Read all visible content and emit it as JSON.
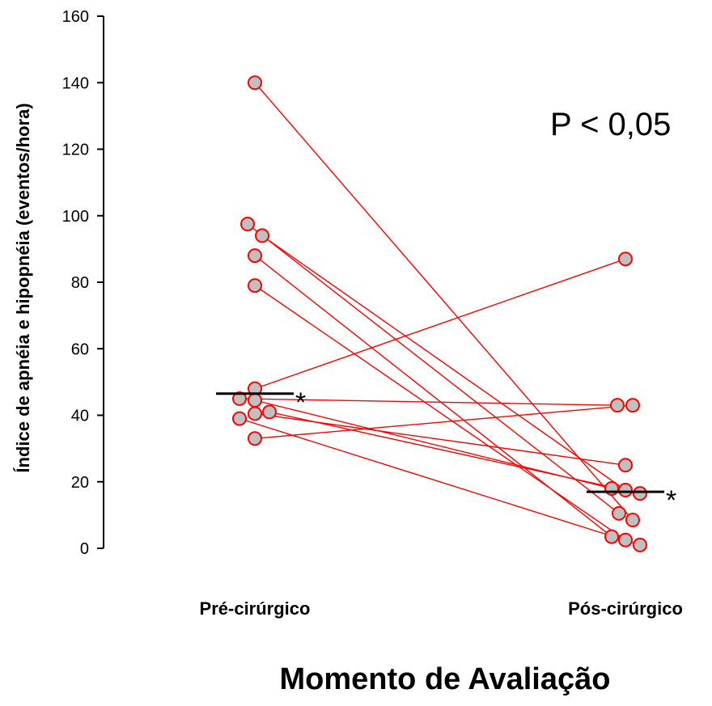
{
  "chart_data": {
    "type": "scatter",
    "subtype": "paired-before-after",
    "categories": [
      "Pré-cirúrgico",
      "Pós-cirúrgico"
    ],
    "ylabel": "Índice de apnéia e hipopnéia (eventos/hora)",
    "xlabel": "Momento de Avaliação",
    "ylim": [
      0,
      160
    ],
    "yticks": [
      "0",
      "20",
      "40",
      "60",
      "80",
      "100",
      "120",
      "140",
      "160"
    ],
    "annotation": "P < 0,05",
    "median_marker": "*",
    "medians": [
      46.5,
      17
    ],
    "grid": false,
    "marker_fill": "#c0c0c0",
    "marker_edge": "#ff0000",
    "line_color": "#ff0000",
    "pairs": [
      {
        "pre": 140,
        "post": 8.5
      },
      {
        "pre": 97.5,
        "post": 10.5
      },
      {
        "pre": 94,
        "post": 17.5
      },
      {
        "pre": 88,
        "post": 3.5
      },
      {
        "pre": 79,
        "post": 2.5
      },
      {
        "pre": 48,
        "post": 87
      },
      {
        "pre": 45,
        "post": 43
      },
      {
        "pre": 44.5,
        "post": 18
      },
      {
        "pre": 41,
        "post": 16.5
      },
      {
        "pre": 40.5,
        "post": 25
      },
      {
        "pre": 39,
        "post": 1
      },
      {
        "pre": 33,
        "post": 43
      }
    ]
  }
}
